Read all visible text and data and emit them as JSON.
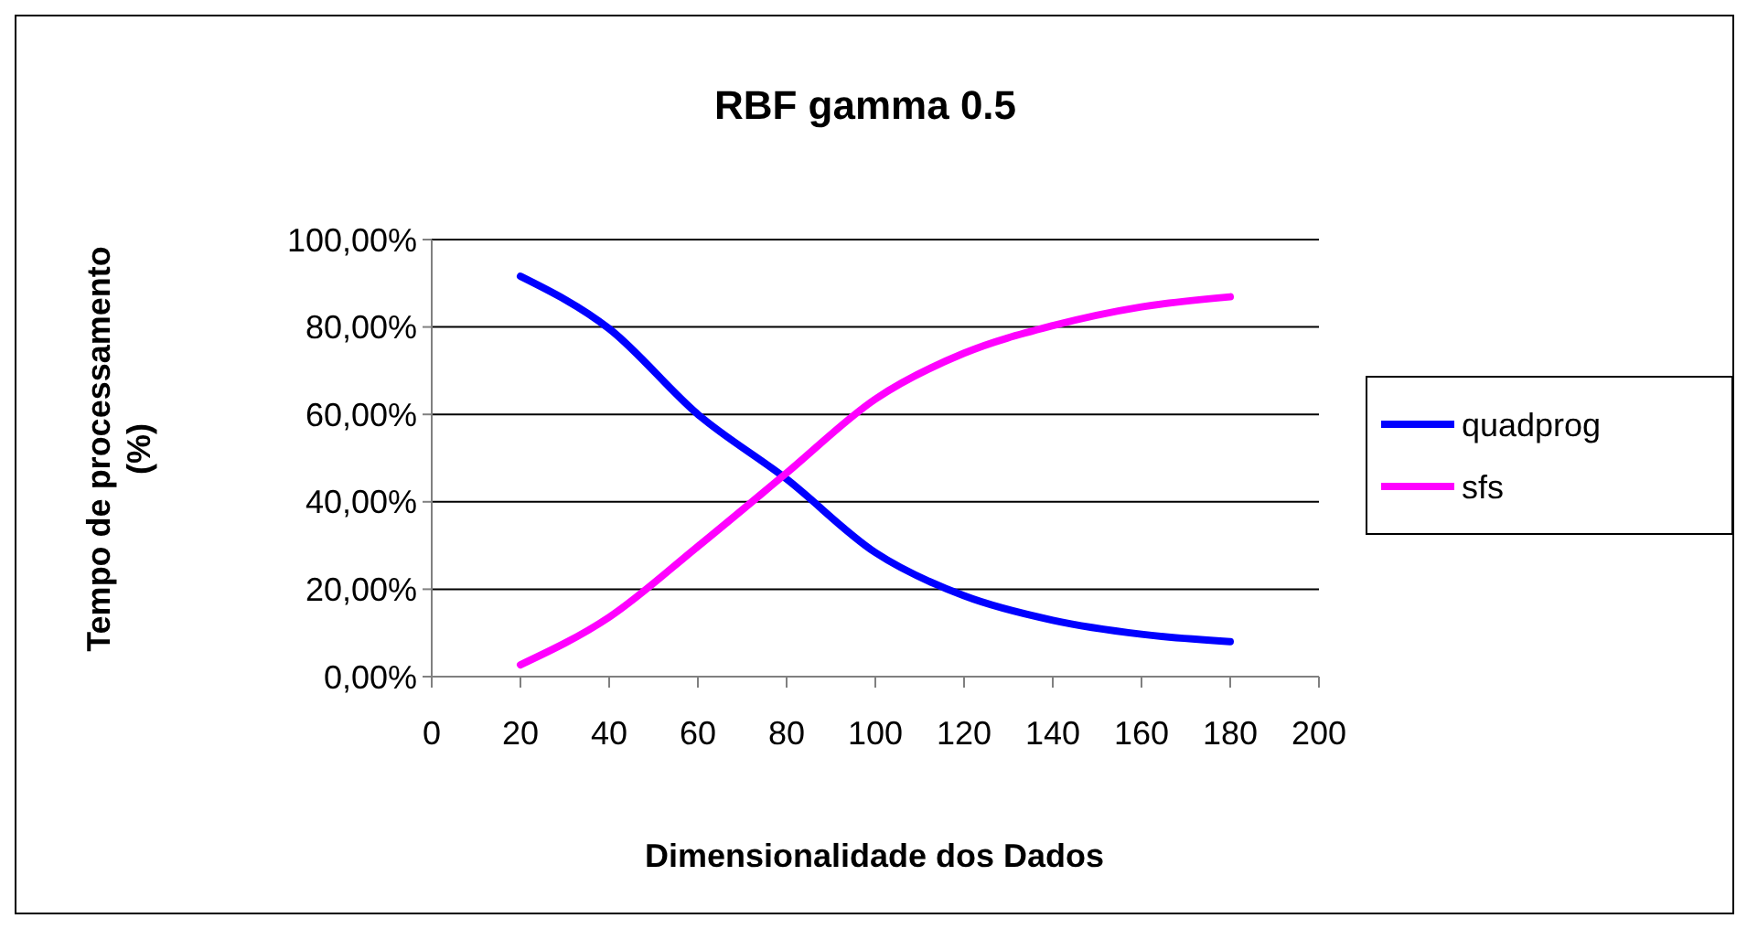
{
  "chart_data": {
    "type": "line",
    "title": "RBF gamma 0.5",
    "xlabel": "Dimensionalidade dos Dados",
    "ylabel": "Tempo de processamento (%)",
    "x": [
      20,
      40,
      60,
      80,
      100,
      120,
      140,
      160,
      180
    ],
    "series": [
      {
        "name": "quadprog",
        "color": "#0000ff",
        "values": [
          91.6,
          79.6,
          60.0,
          45.2,
          28.4,
          18.5,
          12.9,
          9.7,
          8.0
        ]
      },
      {
        "name": "sfs",
        "color": "#ff00ff",
        "values": [
          2.7,
          13.6,
          29.8,
          46.6,
          63.5,
          74.0,
          80.3,
          84.6,
          86.9
        ]
      }
    ],
    "xlim": [
      0,
      200
    ],
    "xticks": [
      0,
      20,
      40,
      60,
      80,
      100,
      120,
      140,
      160,
      180,
      200
    ],
    "ylim": [
      0,
      100
    ],
    "yticks": [
      {
        "value": 0,
        "label": "0,00%"
      },
      {
        "value": 20,
        "label": "20,00%"
      },
      {
        "value": 40,
        "label": "40,00%"
      },
      {
        "value": 60,
        "label": "60,00%"
      },
      {
        "value": 80,
        "label": "80,00%"
      },
      {
        "value": 100,
        "label": "100,00%"
      }
    ],
    "grid": "y",
    "legend": "right",
    "marker": "none",
    "line_style": "solid"
  }
}
